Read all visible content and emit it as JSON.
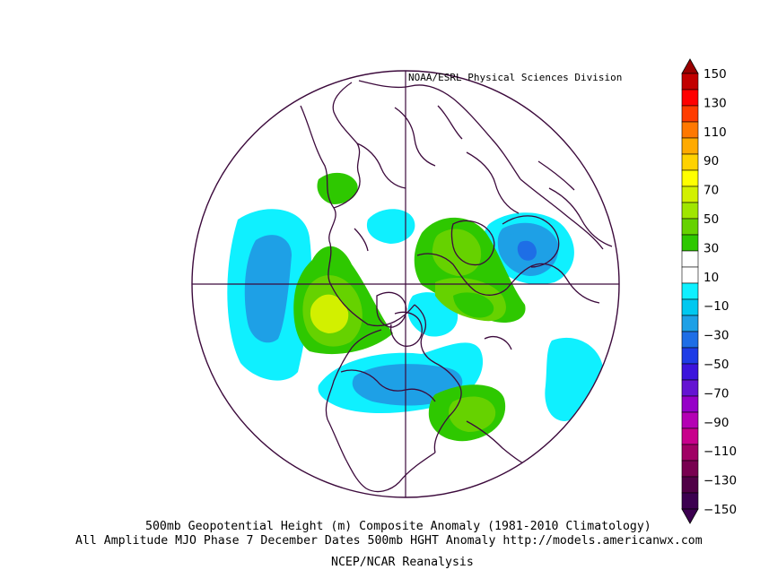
{
  "credit": "NOAA/ESRL Physical Sciences Division",
  "caption": {
    "line1": "500mb Geopotential Height (m) Composite Anomaly (1981-2010 Climatology)",
    "line2": "All Amplitude MJO Phase 7 December Dates 500mb HGHT Anomaly http://models.americanwx.com",
    "line3": "NCEP/NCAR Reanalysis"
  },
  "colorbar": {
    "labels": [
      "150",
      "130",
      "110",
      "90",
      "70",
      "50",
      "30",
      "10",
      "−10",
      "−30",
      "−50",
      "−70",
      "−90",
      "−110",
      "−130",
      "−150"
    ],
    "bins": [
      "#c20000",
      "#ff0000",
      "#ff3c00",
      "#ff7800",
      "#ffaa00",
      "#ffd200",
      "#ffff00",
      "#d2f000",
      "#a0e600",
      "#66d200",
      "#2ec800",
      "#ffffff",
      "#ffffff",
      "#0ff0ff",
      "#00c8f0",
      "#1ea0e6",
      "#1e6ee6",
      "#1e3ce6",
      "#3c14dc",
      "#6414d2",
      "#9600c8",
      "#b400b4",
      "#c8008c",
      "#a00064",
      "#780050",
      "#500046",
      "#3c0050"
    ],
    "top_arrow_color": "#9a0000",
    "bottom_arrow_color": "#3c0050"
  },
  "anomalies": [
    {
      "id": "ne-pacific-low",
      "level": -10
    },
    {
      "id": "ne-pacific-low-core",
      "level": -30
    },
    {
      "id": "alaska-ridge",
      "level": 10
    },
    {
      "id": "alaska-ridge-core",
      "level": 30
    },
    {
      "id": "alaska-ridge-max",
      "level": 50
    },
    {
      "id": "arctic-low",
      "level": -10
    },
    {
      "id": "hudson-low",
      "level": -10
    },
    {
      "id": "hudson-low-core",
      "level": -30
    },
    {
      "id": "greenland-ridge",
      "level": 10
    },
    {
      "id": "greenland-ridge-core",
      "level": 30
    },
    {
      "id": "siberia-high",
      "level": 10
    },
    {
      "id": "siberia-high-core",
      "level": 30
    },
    {
      "id": "east-siberia-low",
      "level": -10
    },
    {
      "id": "east-siberia-low-core",
      "level": -30
    },
    {
      "id": "east-siberia-low-max",
      "level": -50
    },
    {
      "id": "west-atlantic-ridge",
      "level": 10
    },
    {
      "id": "west-atlantic-ridge-core",
      "level": 30
    },
    {
      "id": "mid-atlantic-low",
      "level": -10
    },
    {
      "id": "east-asia-low",
      "level": -10
    },
    {
      "id": "east-asia-low-core",
      "level": -30
    },
    {
      "id": "scandinavia-ridge",
      "level": 10
    }
  ]
}
